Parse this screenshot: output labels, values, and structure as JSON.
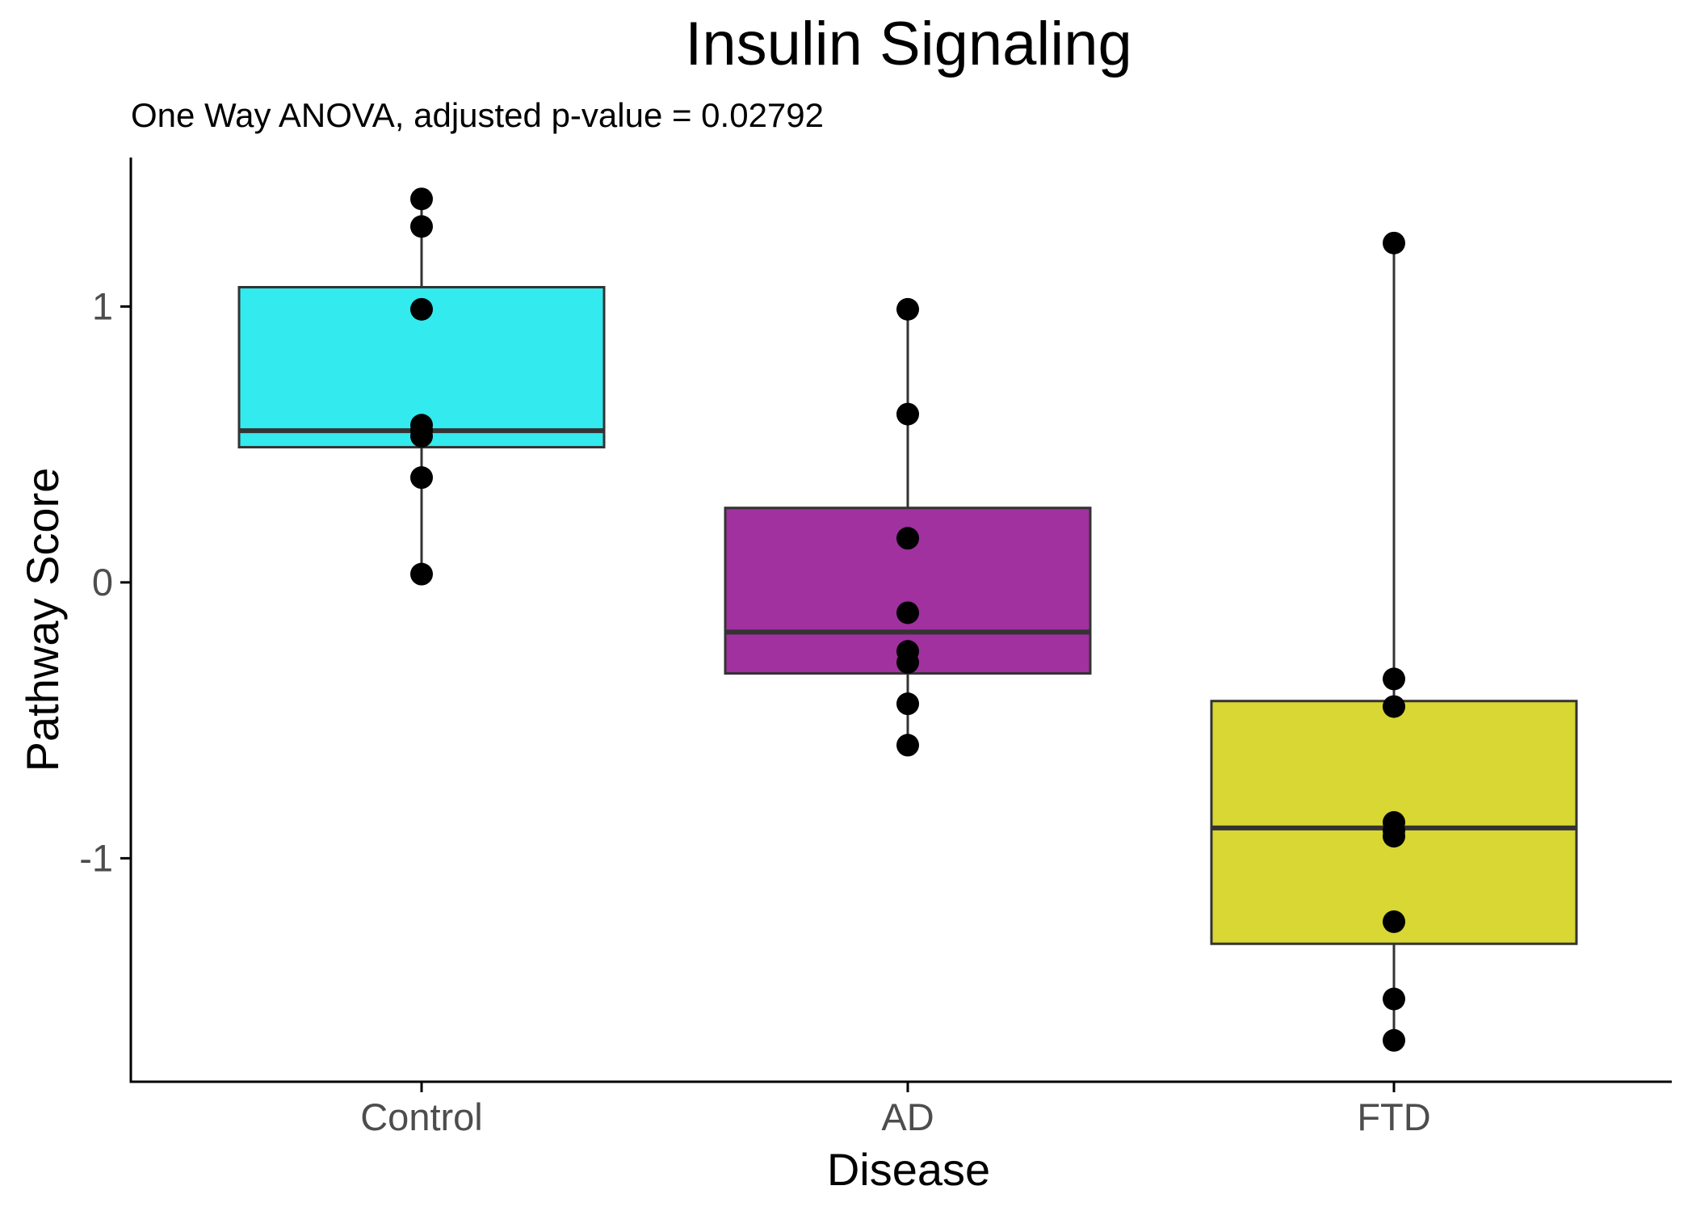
{
  "chart_data": {
    "type": "box",
    "title": "Insulin Signaling",
    "subtitle": "One Way ANOVA, adjusted p-value = 0.02792",
    "xlabel": "Disease",
    "ylabel": "Pathway Score",
    "categories": [
      "Control",
      "AD",
      "FTD"
    ],
    "ylim": [
      -1.81,
      1.54
    ],
    "yticks": [
      {
        "value": 1,
        "label": "1"
      },
      {
        "value": 0,
        "label": "0"
      },
      {
        "value": -1,
        "label": "-1"
      }
    ],
    "grid": false,
    "legend": "none",
    "boxes": [
      {
        "category": "Control",
        "color": "#33EAEE",
        "q1": 0.49,
        "median": 0.55,
        "q3": 1.07,
        "whisker_low": 0.03,
        "whisker_high": 1.39,
        "points": [
          1.39,
          1.29,
          0.99,
          0.57,
          0.55,
          0.53,
          0.38,
          0.03
        ]
      },
      {
        "category": "AD",
        "color": "#A0319F",
        "q1": -0.33,
        "median": -0.18,
        "q3": 0.27,
        "whisker_low": -0.59,
        "whisker_high": 0.99,
        "points": [
          0.99,
          0.61,
          0.16,
          -0.11,
          -0.25,
          -0.29,
          -0.44,
          -0.59
        ]
      },
      {
        "category": "FTD",
        "color": "#D8D733",
        "q1": -1.31,
        "median": -0.89,
        "q3": -0.43,
        "whisker_low": -1.66,
        "whisker_high": 1.23,
        "points": [
          1.23,
          -0.35,
          -0.45,
          -0.87,
          -0.9,
          -0.92,
          -1.23,
          -1.51,
          -1.66
        ]
      }
    ],
    "colors": {
      "outline": "#333333",
      "point": "#000000",
      "axis": "#000000",
      "tick_label": "#4D4D4D"
    }
  }
}
